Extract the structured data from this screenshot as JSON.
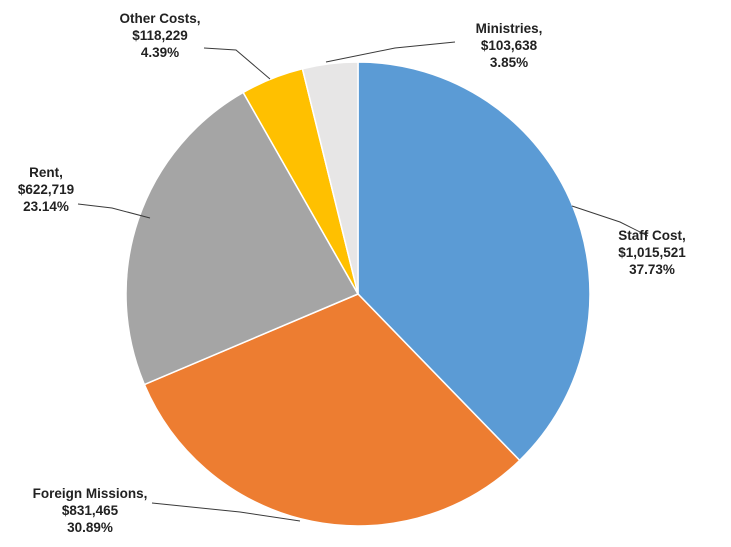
{
  "chart_data": {
    "type": "pie",
    "slices": [
      {
        "name": "Staff Cost",
        "value": 1015521,
        "value_label": "$1,015,521",
        "percent": 37.73,
        "percent_label": "37.73%",
        "color": "#5B9BD5"
      },
      {
        "name": "Foreign Missions",
        "value": 831465,
        "value_label": "$831,465",
        "percent": 30.89,
        "percent_label": "30.89%",
        "color": "#ED7D31"
      },
      {
        "name": "Rent",
        "value": 622719,
        "value_label": "$622,719",
        "percent": 23.14,
        "percent_label": "23.14%",
        "color": "#A5A5A5"
      },
      {
        "name": "Other Costs",
        "value": 118229,
        "value_label": "$118,229",
        "percent": 4.39,
        "percent_label": "4.39%",
        "color": "#FFC000"
      },
      {
        "name": "Ministries",
        "value": 103638,
        "value_label": "$103,638",
        "percent": 3.85,
        "percent_label": "3.85%",
        "color": "#E7E6E6"
      }
    ],
    "start_angle": "12 o'clock",
    "direction": "clockwise",
    "legend": "none",
    "data_labels": "outside with leader lines"
  }
}
